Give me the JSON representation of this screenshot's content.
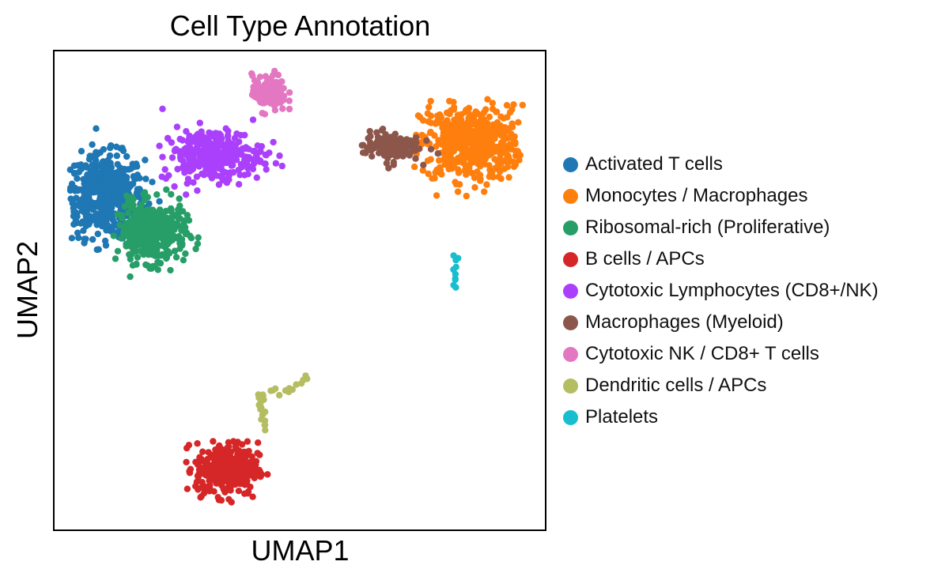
{
  "chart_data": {
    "type": "scatter",
    "title": "Cell Type Annotation",
    "xlabel": "UMAP1",
    "ylabel": "UMAP2",
    "xticks": false,
    "yticks": false,
    "grid": false,
    "legend_position": "right",
    "series": [
      {
        "name": "Activated T cells",
        "color": "#1f77b4",
        "count": 500,
        "center": [
          1.1,
          10.8
        ],
        "spread": [
          0.7,
          1.1
        ],
        "extent": {
          "x": [
            0.35,
            2.4
          ],
          "y": [
            8.6,
            13.0
          ]
        }
      },
      {
        "name": "Monocytes / Macrophages",
        "color": "#ff7f0e",
        "count": 520,
        "center": [
          8.9,
          12.5
        ],
        "spread": [
          0.9,
          1.0
        ],
        "extent": {
          "x": [
            7.6,
            10.0
          ],
          "y": [
            10.7,
            14.6
          ]
        }
      },
      {
        "name": "Ribosomal-rich (Proliferative)",
        "color": "#279e68",
        "count": 380,
        "center": [
          2.1,
          9.6
        ],
        "spread": [
          0.6,
          0.8
        ],
        "extent": {
          "x": [
            1.25,
            3.1
          ],
          "y": [
            7.6,
            11.3
          ]
        }
      },
      {
        "name": "B cells / APCs",
        "color": "#d62728",
        "count": 360,
        "center": [
          3.7,
          2.0
        ],
        "spread": [
          0.55,
          0.7
        ],
        "extent": {
          "x": [
            2.8,
            4.6
          ],
          "y": [
            0.2,
            3.5
          ]
        }
      },
      {
        "name": "Cytotoxic Lymphocytes (CD8+/NK)",
        "color": "#aa40fc",
        "count": 300,
        "center": [
          3.4,
          12.1
        ],
        "spread": [
          0.9,
          0.7
        ],
        "extent": {
          "x": [
            2.2,
            5.0
          ],
          "y": [
            9.8,
            13.9
          ]
        }
      },
      {
        "name": "Macrophages (Myeloid)",
        "color": "#8c564b",
        "count": 130,
        "center": [
          7.2,
          12.4
        ],
        "spread": [
          0.5,
          0.4
        ],
        "extent": {
          "x": [
            6.4,
            8.2
          ],
          "y": [
            11.2,
            13.7
          ]
        }
      },
      {
        "name": "Cytotoxic NK / CD8+ T cells",
        "color": "#e377c2",
        "count": 120,
        "center": [
          4.6,
          14.1
        ],
        "spread": [
          0.3,
          0.5
        ],
        "extent": {
          "x": [
            4.2,
            5.1
          ],
          "y": [
            12.9,
            15.1
          ]
        }
      },
      {
        "name": "Dendritic cells / APCs",
        "color": "#b5bd61",
        "count": 30,
        "path": [
          [
            4.5,
            3.3
          ],
          [
            4.45,
            3.9
          ],
          [
            4.4,
            4.4
          ],
          [
            5.0,
            4.5
          ],
          [
            5.45,
            5.1
          ]
        ]
      },
      {
        "name": "Platelets",
        "color": "#17becf",
        "count": 10,
        "path": [
          [
            8.55,
            7.7
          ],
          [
            8.57,
            8.4
          ],
          [
            8.55,
            9.0
          ]
        ]
      }
    ],
    "xlim": [
      0,
      10.5
    ],
    "ylim": [
      0,
      15.5
    ]
  }
}
